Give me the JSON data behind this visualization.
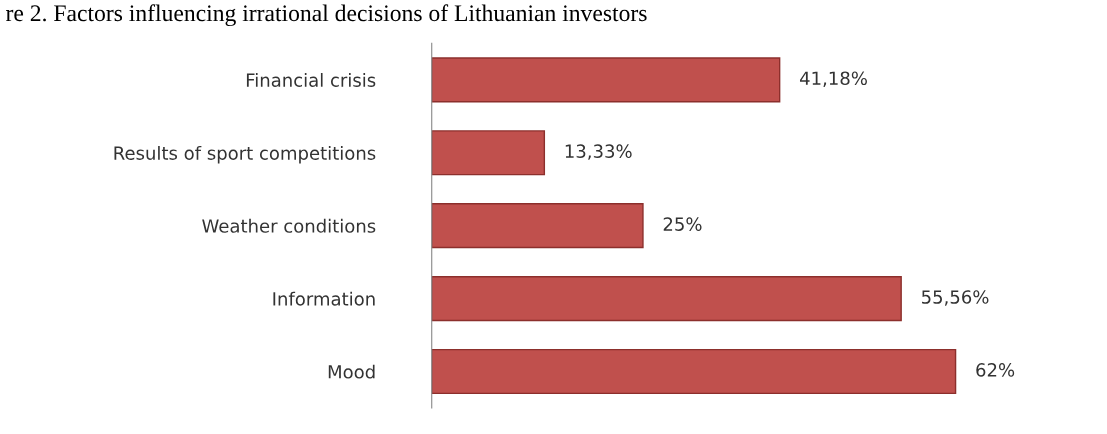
{
  "chart_data": {
    "type": "bar",
    "orientation": "horizontal",
    "title": "re 2. Factors influencing irrational decisions of Lithuanian investors",
    "categories": [
      "Financial crisis",
      "Results of sport competitions",
      "Weather conditions",
      "Information",
      "Mood"
    ],
    "values": [
      41.18,
      13.33,
      25,
      55.56,
      62
    ],
    "value_labels": [
      "41,18%",
      "13,33%",
      "25%",
      "55,56%",
      "62%"
    ],
    "color": "#c0504d",
    "grid": false,
    "legend": false
  }
}
